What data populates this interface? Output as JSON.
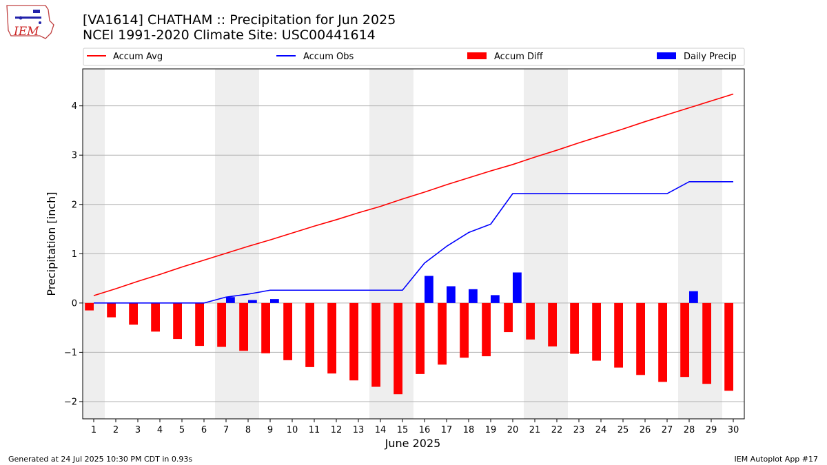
{
  "header": {
    "title_line1": "[VA1614] CHATHAM :: Precipitation for Jun 2025",
    "title_line2": "NCEI 1991-2020 Climate Site: USC00441614",
    "logo_text": "IEM"
  },
  "footer": {
    "generated": "Generated at 24 Jul 2025 10:30 PM CDT in 0.93s",
    "app": "IEM Autoplot App #17"
  },
  "colors": {
    "avg": "#ff0000",
    "obs": "#0000ff",
    "diff": "#ff0000",
    "daily": "#0000ff",
    "weekend_band": "#eeeeee",
    "grid": "#b0b0b0"
  },
  "chart_data": {
    "type": "bar",
    "xlabel": "June 2025",
    "ylabel": "Precipitation [inch]",
    "ylim": [
      -2.35,
      4.75
    ],
    "yticks": [
      -2,
      -1,
      0,
      1,
      2,
      3,
      4
    ],
    "ytick_labels": [
      "−2",
      "−1",
      "0",
      "1",
      "2",
      "3",
      "4"
    ],
    "grid": "y",
    "legend": [
      "Accum Avg",
      "Accum Obs",
      "Accum Diff",
      "Daily Precip"
    ],
    "legend_placement": "top",
    "x": [
      1,
      2,
      3,
      4,
      5,
      6,
      7,
      8,
      9,
      10,
      11,
      12,
      13,
      14,
      15,
      16,
      17,
      18,
      19,
      20,
      21,
      22,
      23,
      24,
      25,
      26,
      27,
      28,
      29,
      30
    ],
    "weekend_days": [
      1,
      7,
      8,
      14,
      15,
      21,
      22,
      28,
      29
    ],
    "series": [
      {
        "name": "Accum Avg",
        "kind": "line",
        "values": [
          0.15,
          0.29,
          0.44,
          0.58,
          0.73,
          0.87,
          1.01,
          1.15,
          1.28,
          1.42,
          1.56,
          1.69,
          1.83,
          1.96,
          2.11,
          2.25,
          2.4,
          2.54,
          2.68,
          2.81,
          2.96,
          3.1,
          3.25,
          3.39,
          3.53,
          3.68,
          3.82,
          3.96,
          4.1,
          4.24
        ]
      },
      {
        "name": "Accum Obs",
        "kind": "line",
        "values": [
          0,
          0,
          0,
          0,
          0,
          0,
          0.12,
          0.18,
          0.26,
          0.26,
          0.26,
          0.26,
          0.26,
          0.26,
          0.26,
          0.81,
          1.15,
          1.43,
          1.6,
          2.22,
          2.22,
          2.22,
          2.22,
          2.22,
          2.22,
          2.22,
          2.22,
          2.46,
          2.46,
          2.46
        ]
      },
      {
        "name": "Accum Diff",
        "kind": "bar",
        "values": [
          -0.15,
          -0.29,
          -0.44,
          -0.58,
          -0.73,
          -0.87,
          -0.89,
          -0.97,
          -1.02,
          -1.16,
          -1.3,
          -1.43,
          -1.57,
          -1.7,
          -1.85,
          -1.44,
          -1.25,
          -1.11,
          -1.08,
          -0.59,
          -0.74,
          -0.88,
          -1.03,
          -1.17,
          -1.31,
          -1.46,
          -1.6,
          -1.5,
          -1.64,
          -1.78
        ]
      },
      {
        "name": "Daily Precip",
        "kind": "bar",
        "values": [
          0,
          0,
          0,
          0,
          0,
          0,
          0.12,
          0.06,
          0.08,
          0,
          0,
          0,
          0,
          0,
          0,
          0.55,
          0.34,
          0.28,
          0.16,
          0.62,
          0,
          0,
          0,
          0,
          0,
          0,
          0,
          0.24,
          0,
          0
        ]
      }
    ]
  }
}
